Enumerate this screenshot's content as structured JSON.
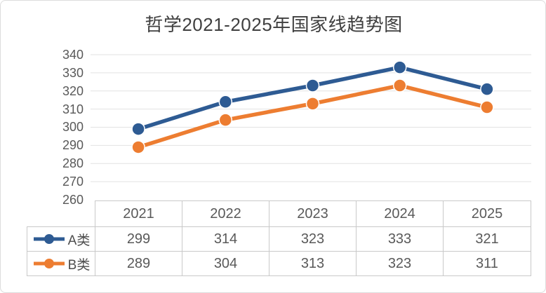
{
  "title": "哲学2021-2025年国家线趋势图",
  "colors": {
    "background": "#ffffff",
    "card_border": "#dcdcdc",
    "grid": "#e2e2e2",
    "table_border": "#c9c9c9",
    "axis_text": "#595959",
    "title_text": "#3f3f3f",
    "series_a": "#2e5b93",
    "series_b": "#ed7d31"
  },
  "chart_data": {
    "type": "line",
    "title": "哲学2021-2025年国家线趋势图",
    "categories": [
      "2021",
      "2022",
      "2023",
      "2024",
      "2025"
    ],
    "series": [
      {
        "name": "A类",
        "values": [
          299,
          314,
          323,
          333,
          321
        ],
        "color": "#2e5b93"
      },
      {
        "name": "B类",
        "values": [
          289,
          304,
          313,
          323,
          311
        ],
        "color": "#ed7d31"
      }
    ],
    "xlabel": "",
    "ylabel": "",
    "ylim": [
      260,
      340
    ],
    "ytick_step": 10,
    "yticks": [
      260,
      270,
      280,
      290,
      300,
      310,
      320,
      330,
      340
    ],
    "grid": "horizontal",
    "markers": true,
    "legend_position": "data-table-left",
    "data_table": true
  }
}
